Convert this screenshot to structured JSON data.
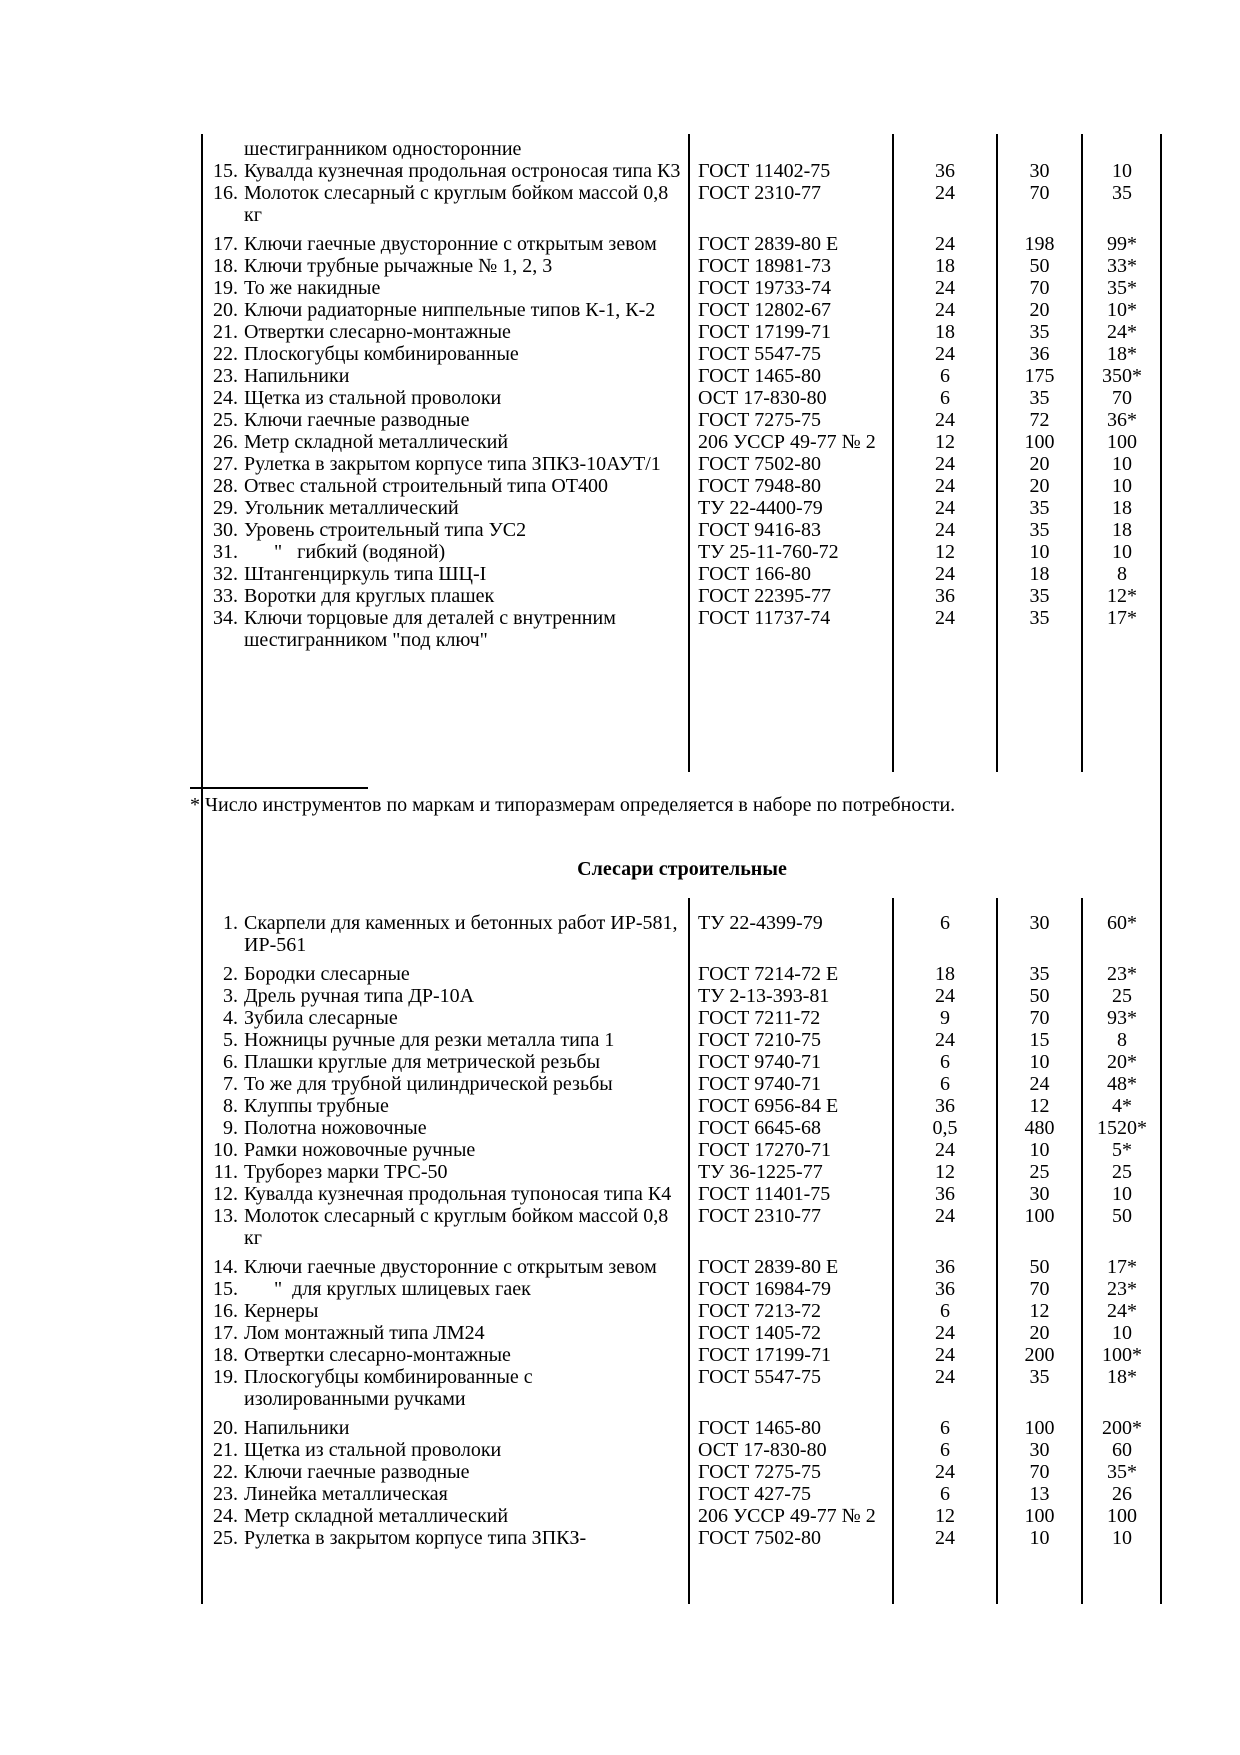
{
  "document": {
    "carryover_line": "шестигранником односторонние",
    "footnote": "* Число инструментов по маркам и типоразмерам определяется в наборе по потребности.",
    "section2_title": "Слесари строительные"
  },
  "table1": {
    "rows": [
      {
        "num": "15.",
        "name": "Кувалда кузнечная продольная остроносая типа К3",
        "std": "ГОСТ 11402-75",
        "v1": "36",
        "v2": "30",
        "v3": "10"
      },
      {
        "num": "16.",
        "name": "Молоток слесарный с круглым бойком массой 0,8 кг",
        "std": "ГОСТ 2310-77",
        "v1": "24",
        "v2": "70",
        "v3": "35"
      },
      {
        "num": "17.",
        "name": "Ключи гаечные двусторонние с открытым зевом",
        "std": "ГОСТ 2839-80 Е",
        "v1": "24",
        "v2": "198",
        "v3": "99*"
      },
      {
        "num": "18.",
        "name": "Ключи трубные рычажные № 1, 2, 3",
        "std": "ГОСТ 18981-73",
        "v1": "18",
        "v2": "50",
        "v3": "33*"
      },
      {
        "num": "19.",
        "name": "То же накидные",
        "std": "ГОСТ 19733-74",
        "v1": "24",
        "v2": "70",
        "v3": "35*"
      },
      {
        "num": "20.",
        "name": "Ключи радиаторные ниппельные типов К-1, К-2",
        "std": "ГОСТ 12802-67",
        "v1": "24",
        "v2": "20",
        "v3": "10*"
      },
      {
        "num": "21.",
        "name": "Отвертки слесарно-монтажные",
        "std": "ГОСТ 17199-71",
        "v1": "18",
        "v2": "35",
        "v3": "24*"
      },
      {
        "num": "22.",
        "name": "Плоскогубцы комбинированные",
        "std": "ГОСТ 5547-75",
        "v1": "24",
        "v2": "36",
        "v3": "18*"
      },
      {
        "num": "23.",
        "name": "Напильники",
        "std": "ГОСТ 1465-80",
        "v1": "6",
        "v2": "175",
        "v3": "350*"
      },
      {
        "num": "24.",
        "name": "Щетка из стальной проволоки",
        "std": "ОСТ 17-830-80",
        "v1": "6",
        "v2": "35",
        "v3": "70"
      },
      {
        "num": "25.",
        "name": "Ключи гаечные разводные",
        "std": "ГОСТ 7275-75",
        "v1": "24",
        "v2": "72",
        "v3": "36*"
      },
      {
        "num": "26.",
        "name": "Метр складной металлический",
        "std": "206 УССР 49-77 № 2",
        "v1": "12",
        "v2": "100",
        "v3": "100"
      },
      {
        "num": "27.",
        "name": "Рулетка в закрытом корпусе типа ЗПКЗ-10АУТ/1",
        "std": "ГОСТ 7502-80",
        "v1": "24",
        "v2": "20",
        "v3": "10"
      },
      {
        "num": "28.",
        "name": "Отвес стальной строительный типа ОТ400",
        "std": "ГОСТ 7948-80",
        "v1": "24",
        "v2": "20",
        "v3": "10"
      },
      {
        "num": "29.",
        "name": "Угольник металлический",
        "std": "ТУ 22-4400-79",
        "v1": "24",
        "v2": "35",
        "v3": "18"
      },
      {
        "num": "30.",
        "name": "Уровень строительный типа УС2",
        "std": "ГОСТ 9416-83",
        "v1": "24",
        "v2": "35",
        "v3": "18"
      },
      {
        "num": "31.",
        "name": "      \"   гибкий (водяной)",
        "std": "ТУ 25-11-760-72",
        "v1": "12",
        "v2": "10",
        "v3": "10"
      },
      {
        "num": "32.",
        "name": "Штангенциркуль типа ШЦ-I",
        "std": "ГОСТ 166-80",
        "v1": "24",
        "v2": "18",
        "v3": "8"
      },
      {
        "num": "33.",
        "name": "Воротки для круглых плашек",
        "std": "ГОСТ 22395-77",
        "v1": "36",
        "v2": "35",
        "v3": "12*"
      },
      {
        "num": "34.",
        "name": "Ключи торцовые для деталей с внутренним шестигранником \"под ключ\"",
        "std": "ГОСТ 11737-74",
        "v1": "24",
        "v2": "35",
        "v3": "17*"
      }
    ]
  },
  "table2": {
    "rows": [
      {
        "num": "1.",
        "name": "Скарпели для каменных и бетонных работ ИР-581, ИР-561",
        "std": "ТУ 22-4399-79",
        "v1": "6",
        "v2": "30",
        "v3": "60*"
      },
      {
        "num": "2.",
        "name": "Бородки слесарные",
        "std": "ГОСТ 7214-72 Е",
        "v1": "18",
        "v2": "35",
        "v3": "23*"
      },
      {
        "num": "3.",
        "name": "Дрель ручная типа ДР-10А",
        "std": "ТУ 2-13-393-81",
        "v1": "24",
        "v2": "50",
        "v3": "25"
      },
      {
        "num": "4.",
        "name": "Зубила слесарные",
        "std": "ГОСТ 7211-72",
        "v1": "9",
        "v2": "70",
        "v3": "93*"
      },
      {
        "num": "5.",
        "name": "Ножницы ручные для резки металла типа 1",
        "std": "ГОСТ 7210-75",
        "v1": "24",
        "v2": "15",
        "v3": "8"
      },
      {
        "num": "6.",
        "name": "Плашки круглые для метрической резьбы",
        "std": "ГОСТ 9740-71",
        "v1": "6",
        "v2": "10",
        "v3": "20*"
      },
      {
        "num": "7.",
        "name": "То же для трубной цилиндрической резьбы",
        "std": "ГОСТ 9740-71",
        "v1": "6",
        "v2": "24",
        "v3": "48*"
      },
      {
        "num": "8.",
        "name": "Клуппы трубные",
        "std": "ГОСТ 6956-84 Е",
        "v1": "36",
        "v2": "12",
        "v3": "4*"
      },
      {
        "num": "9.",
        "name": "Полотна ножовочные",
        "std": "ГОСТ 6645-68",
        "v1": "0,5",
        "v2": "480",
        "v3": "1520*"
      },
      {
        "num": "10.",
        "name": "Рамки ножовочные ручные",
        "std": "ГОСТ 17270-71",
        "v1": "24",
        "v2": "10",
        "v3": "5*"
      },
      {
        "num": "11.",
        "name": "Труборез марки ТРС-50",
        "std": "ТУ 36-1225-77",
        "v1": "12",
        "v2": "25",
        "v3": "25"
      },
      {
        "num": "12.",
        "name": "Кувалда кузнечная продольная тупоносая типа К4",
        "std": "ГОСТ 11401-75",
        "v1": "36",
        "v2": "30",
        "v3": "10"
      },
      {
        "num": "13.",
        "name": "Молоток слесарный с круглым бойком массой 0,8 кг",
        "std": "ГОСТ 2310-77",
        "v1": "24",
        "v2": "100",
        "v3": "50"
      },
      {
        "num": "14.",
        "name": "Ключи гаечные двусторонние с открытым зевом",
        "std": "ГОСТ 2839-80 Е",
        "v1": "36",
        "v2": "50",
        "v3": "17*"
      },
      {
        "num": "15.",
        "name": "      \"  для круглых шлицевых гаек",
        "std": "ГОСТ 16984-79",
        "v1": "36",
        "v2": "70",
        "v3": "23*"
      },
      {
        "num": "16.",
        "name": "Кернеры",
        "std": "ГОСТ 7213-72",
        "v1": "6",
        "v2": "12",
        "v3": "24*"
      },
      {
        "num": "17.",
        "name": "Лом монтажный типа ЛМ24",
        "std": "ГОСТ 1405-72",
        "v1": "24",
        "v2": "20",
        "v3": "10"
      },
      {
        "num": "18.",
        "name": "Отвертки слесарно-монтажные",
        "std": "ГОСТ 17199-71",
        "v1": "24",
        "v2": "200",
        "v3": "100*"
      },
      {
        "num": "19.",
        "name": "Плоскогубцы комбинированные с изолированными ручками",
        "std": "ГОСТ 5547-75",
        "v1": "24",
        "v2": "35",
        "v3": "18*"
      },
      {
        "num": "20.",
        "name": "Напильники",
        "std": "ГОСТ 1465-80",
        "v1": "6",
        "v2": "100",
        "v3": "200*"
      },
      {
        "num": "21.",
        "name": "Щетка из стальной проволоки",
        "std": "ОСТ 17-830-80",
        "v1": "6",
        "v2": "30",
        "v3": "60"
      },
      {
        "num": "22.",
        "name": "Ключи гаечные разводные",
        "std": "ГОСТ 7275-75",
        "v1": "24",
        "v2": "70",
        "v3": "35*"
      },
      {
        "num": "23.",
        "name": "Линейка металлическая",
        "std": "ГОСТ 427-75",
        "v1": "6",
        "v2": "13",
        "v3": "26"
      },
      {
        "num": "24.",
        "name": "Метр складной металлический",
        "std": "206 УССР 49-77 № 2",
        "v1": "12",
        "v2": "100",
        "v3": "100"
      },
      {
        "num": "25.",
        "name": "Рулетка в закрытом корпусе типа ЗПКЗ-",
        "std": "ГОСТ 7502-80",
        "v1": "24",
        "v2": "10",
        "v3": "10"
      }
    ]
  }
}
